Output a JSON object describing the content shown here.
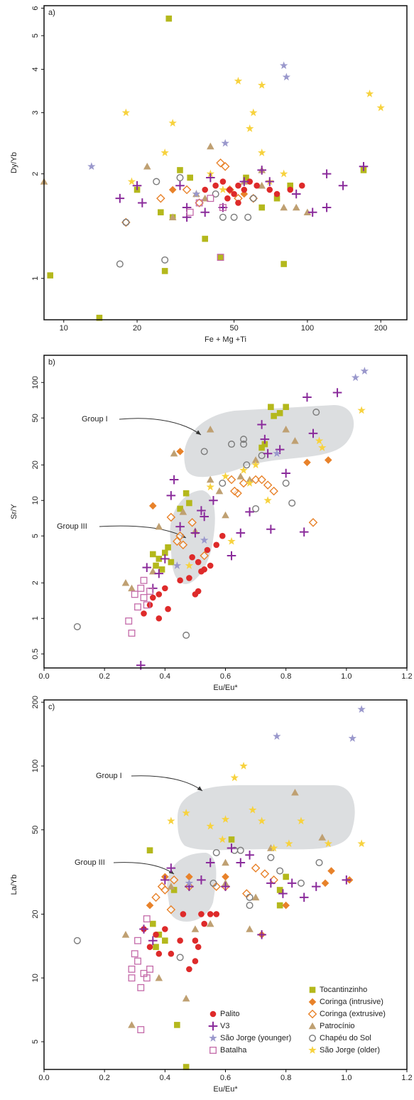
{
  "chart_data": [
    {
      "type": "scatter",
      "panel_label": "a)",
      "x_label": "Fe + Mg +Ti",
      "y_label": "Dy/Yb",
      "log_x": true,
      "log_y": true,
      "xlim": [
        8.3,
        256
      ],
      "ylim": [
        0.76,
        6.1
      ],
      "xticks": [
        10,
        20,
        50,
        100,
        200
      ],
      "yticks": [
        1,
        2,
        3,
        4,
        5,
        6
      ],
      "series": [
        {
          "color": "#b4b81c",
          "marker": "square",
          "x": [
            27,
            8.8,
            14,
            26,
            38,
            44,
            80,
            30,
            33,
            56,
            65,
            75,
            85,
            170,
            20,
            25,
            28
          ],
          "values": [
            5.6,
            1.02,
            0.77,
            1.05,
            1.3,
            1.15,
            1.1,
            2.05,
            1.95,
            1.95,
            1.6,
            1.7,
            1.85,
            2.05,
            1.8,
            1.55,
            1.5
          ]
        },
        {
          "color": "#e8822a",
          "marker": "diamond",
          "x": [
            28,
            55
          ],
          "values": [
            1.8,
            1.75
          ]
        },
        {
          "color": "#e8822a",
          "marker": "diamond-open",
          "x": [
            18,
            25,
            32,
            36,
            44,
            46,
            48,
            52,
            60
          ],
          "values": [
            1.45,
            1.7,
            1.8,
            1.65,
            2.15,
            2.1,
            1.8,
            1.7,
            1.7
          ]
        },
        {
          "color": "#bfa072",
          "marker": "triangle",
          "x": [
            8.3,
            22,
            28,
            35,
            40,
            55,
            65,
            80,
            90,
            100,
            65,
            38
          ],
          "values": [
            1.9,
            2.1,
            1.5,
            1.75,
            2.4,
            1.9,
            2.05,
            1.6,
            1.6,
            1.55,
            1.85,
            1.7
          ]
        },
        {
          "color": "#7a7a7a",
          "marker": "circle-open",
          "x": [
            17,
            18,
            26,
            24,
            30,
            45,
            50,
            57,
            60,
            42
          ],
          "values": [
            1.1,
            1.45,
            1.13,
            1.9,
            1.95,
            1.5,
            1.5,
            1.5,
            1.7,
            1.75
          ]
        },
        {
          "color": "#f7d23e",
          "marker": "star",
          "x": [
            18,
            19,
            26,
            28,
            40,
            52,
            58,
            60,
            65,
            65,
            80,
            70,
            180,
            200,
            35,
            45
          ],
          "values": [
            3.0,
            1.9,
            2.3,
            2.8,
            2.0,
            3.7,
            2.7,
            3.0,
            3.6,
            2.3,
            2.0,
            1.9,
            3.4,
            3.1,
            1.75,
            1.8
          ]
        },
        {
          "color": "#de2a2a",
          "marker": "circle",
          "x": [
            38,
            42,
            45,
            48,
            50,
            52,
            55,
            58,
            62,
            70,
            75,
            85,
            95,
            47,
            52
          ],
          "values": [
            1.8,
            1.85,
            1.9,
            1.8,
            1.75,
            1.85,
            1.8,
            1.9,
            1.85,
            1.8,
            1.75,
            1.8,
            1.85,
            1.7,
            1.65
          ]
        },
        {
          "color": "#8a2b9b",
          "marker": "plus",
          "x": [
            17,
            20,
            21,
            30,
            32,
            40,
            45,
            55,
            65,
            70,
            90,
            105,
            120,
            120,
            140,
            170,
            32,
            38
          ],
          "values": [
            1.7,
            1.85,
            1.65,
            1.85,
            1.6,
            1.95,
            1.6,
            1.9,
            2.05,
            1.9,
            1.75,
            1.55,
            2.0,
            1.6,
            1.85,
            2.1,
            1.5,
            1.55
          ]
        },
        {
          "color": "#9a98cc",
          "marker": "star",
          "x": [
            13,
            46,
            80,
            82,
            35
          ],
          "values": [
            2.1,
            2.45,
            4.1,
            3.8,
            1.75
          ]
        },
        {
          "color": "#c46aa9",
          "marker": "square-open",
          "x": [
            33,
            44,
            40,
            36,
            45
          ],
          "values": [
            1.55,
            1.15,
            1.7,
            1.65,
            1.6
          ]
        }
      ]
    },
    {
      "type": "scatter",
      "panel_label": "b)",
      "x_label": "Eu/Eu*",
      "y_label": "Sr/Y",
      "log_x": false,
      "log_y": true,
      "xlim": [
        0,
        1.2
      ],
      "ylim": [
        0.38,
        170
      ],
      "xticks": [
        {
          "value": 0,
          "label": "0.0"
        },
        0.2,
        0.4,
        0.6,
        0.8,
        {
          "value": 1,
          "label": "1.0"
        },
        1.2
      ],
      "yticks": [
        0.5,
        1,
        2,
        5,
        10,
        20,
        50,
        100
      ],
      "annotations": [
        "Group I",
        "Group III"
      ],
      "series": [
        {
          "color": "#b4b81c",
          "marker": "square",
          "x": [
            0.36,
            0.37,
            0.38,
            0.39,
            0.4,
            0.41,
            0.42,
            0.45,
            0.47,
            0.48,
            0.75,
            0.78,
            0.8,
            0.76,
            0.72,
            0.73
          ],
          "values": [
            3.5,
            2.8,
            3.2,
            2.6,
            3.6,
            4.0,
            3.0,
            8.5,
            11.5,
            9.5,
            62,
            55,
            62,
            52,
            28,
            30
          ]
        },
        {
          "color": "#e8822a",
          "marker": "diamond",
          "x": [
            0.36,
            0.45,
            0.87,
            0.94
          ],
          "values": [
            9.0,
            26,
            21,
            22
          ]
        },
        {
          "color": "#e8822a",
          "marker": "diamond-open",
          "x": [
            0.42,
            0.44,
            0.45,
            0.46,
            0.49,
            0.53,
            0.62,
            0.64,
            0.66,
            0.7,
            0.72,
            0.74,
            0.76,
            0.89,
            0.63
          ],
          "values": [
            7.2,
            4.5,
            5.0,
            4.2,
            6.5,
            3.4,
            15,
            11.5,
            14,
            15,
            15,
            13.5,
            12,
            6.5,
            12
          ]
        },
        {
          "color": "#bfa072",
          "marker": "triangle",
          "x": [
            0.27,
            0.29,
            0.36,
            0.38,
            0.43,
            0.46,
            0.5,
            0.55,
            0.58,
            0.6,
            0.65,
            0.68,
            0.7,
            0.8,
            0.83,
            0.55
          ],
          "values": [
            2.0,
            1.8,
            2.5,
            6,
            25,
            8,
            5.5,
            15,
            12,
            7.5,
            16,
            15,
            22,
            40,
            32,
            40
          ]
        },
        {
          "color": "#7a7a7a",
          "marker": "circle-open",
          "x": [
            0.11,
            0.47,
            0.53,
            0.59,
            0.62,
            0.66,
            0.67,
            0.7,
            0.72,
            0.8,
            0.82,
            0.9,
            0.66
          ],
          "values": [
            0.85,
            0.72,
            26,
            14,
            30,
            30,
            20,
            8.5,
            24,
            14,
            9.5,
            56,
            33
          ]
        },
        {
          "color": "#f7d23e",
          "marker": "star",
          "x": [
            0.48,
            0.55,
            0.6,
            0.62,
            0.66,
            0.68,
            0.7,
            0.74,
            0.91,
            0.92,
            1.05
          ],
          "values": [
            2.8,
            13,
            16,
            4.5,
            18,
            14,
            20,
            10,
            32,
            28,
            58
          ]
        },
        {
          "color": "#de2a2a",
          "marker": "circle",
          "x": [
            0.33,
            0.35,
            0.36,
            0.38,
            0.38,
            0.4,
            0.41,
            0.45,
            0.48,
            0.49,
            0.5,
            0.51,
            0.52,
            0.54,
            0.55,
            0.57,
            0.59,
            0.51,
            0.53
          ],
          "values": [
            1.1,
            1.3,
            1.5,
            1.6,
            1.0,
            1.8,
            1.2,
            2.1,
            2.2,
            3.3,
            1.6,
            1.7,
            2.5,
            3.8,
            2.8,
            4.2,
            5.0,
            3.0,
            2.6
          ]
        },
        {
          "color": "#8a2b9b",
          "marker": "plus",
          "x": [
            0.32,
            0.34,
            0.36,
            0.38,
            0.4,
            0.42,
            0.43,
            0.45,
            0.5,
            0.52,
            0.53,
            0.56,
            0.62,
            0.65,
            0.68,
            0.72,
            0.73,
            0.74,
            0.75,
            0.78,
            0.8,
            0.86,
            0.87,
            0.89,
            0.97
          ],
          "values": [
            0.4,
            2.7,
            1.8,
            2.4,
            3.2,
            11,
            15,
            6,
            5.3,
            8.2,
            7.3,
            10,
            3.4,
            5.3,
            8,
            44,
            33,
            25,
            5.7,
            27,
            17,
            5.4,
            75,
            37,
            82
          ]
        },
        {
          "color": "#9a98cc",
          "marker": "star",
          "x": [
            0.44,
            0.53,
            0.77,
            1.03,
            1.06
          ],
          "values": [
            2.8,
            4.6,
            25,
            110,
            125
          ]
        },
        {
          "color": "#c46aa9",
          "marker": "square-open",
          "x": [
            0.28,
            0.29,
            0.3,
            0.31,
            0.32,
            0.33,
            0.33,
            0.34,
            0.35
          ],
          "values": [
            0.95,
            0.75,
            1.6,
            1.25,
            1.8,
            2.1,
            1.5,
            1.3,
            1.7
          ]
        }
      ]
    },
    {
      "type": "scatter",
      "panel_label": "c)",
      "x_label": "Eu/Eu*",
      "y_label": "La/Yb",
      "log_x": false,
      "log_y": true,
      "xlim": [
        0,
        1.2
      ],
      "ylim": [
        3.7,
        205
      ],
      "xticks": [
        {
          "value": 0,
          "label": "0.0"
        },
        0.2,
        0.4,
        0.6,
        0.8,
        {
          "value": 1,
          "label": "1.0"
        },
        1.2
      ],
      "yticks": [
        5,
        10,
        20,
        50,
        100,
        200
      ],
      "annotations": [
        "Group I",
        "Group III"
      ],
      "legend": "lower right",
      "series": [
        {
          "name": "Tocantinzinho",
          "color": "#b4b81c",
          "marker": "square",
          "x": [
            0.35,
            0.36,
            0.37,
            0.38,
            0.4,
            0.43,
            0.44,
            0.47,
            0.62,
            0.78,
            0.8,
            0.78
          ],
          "values": [
            40,
            18,
            14,
            16,
            15,
            26,
            6,
            3.8,
            45,
            22,
            30,
            26
          ]
        },
        {
          "name": "Coringa (intrusive)",
          "color": "#e8822a",
          "marker": "diamond",
          "x": [
            0.35,
            0.4,
            0.48,
            0.6,
            0.72,
            0.8,
            0.95,
            1.01,
            0.93
          ],
          "values": [
            22,
            30,
            30,
            30,
            16,
            22,
            32,
            29,
            28
          ]
        },
        {
          "name": "Coringa (extrusive)",
          "color": "#e8822a",
          "marker": "diamond-open",
          "x": [
            0.37,
            0.39,
            0.4,
            0.42,
            0.43,
            0.48,
            0.57,
            0.6,
            0.67,
            0.7,
            0.73,
            0.76
          ],
          "values": [
            24,
            27,
            26,
            21,
            29,
            27,
            27,
            27,
            25,
            33,
            31,
            29
          ]
        },
        {
          "name": "Patrocínio",
          "color": "#bfa072",
          "marker": "triangle",
          "x": [
            0.27,
            0.29,
            0.38,
            0.42,
            0.47,
            0.5,
            0.55,
            0.6,
            0.68,
            0.7,
            0.75,
            0.83,
            0.92,
            0.6
          ],
          "values": [
            16,
            6,
            10,
            27,
            8,
            17,
            18,
            28,
            17,
            24,
            41,
            75,
            46,
            35
          ]
        },
        {
          "name": "Chapéu do Sol",
          "color": "#7a7a7a",
          "marker": "circle-open",
          "x": [
            0.11,
            0.45,
            0.57,
            0.63,
            0.65,
            0.68,
            0.68,
            0.75,
            0.78,
            0.85,
            0.91,
            0.56
          ],
          "values": [
            15,
            12.5,
            39,
            40,
            40,
            22,
            24,
            37,
            32,
            28,
            35,
            28
          ]
        },
        {
          "name": "São Jorge (older)",
          "color": "#f7d23e",
          "marker": "star",
          "x": [
            0.42,
            0.47,
            0.55,
            0.59,
            0.63,
            0.66,
            0.69,
            0.72,
            0.76,
            0.81,
            0.85,
            0.94,
            1.05,
            0.6
          ],
          "values": [
            55,
            60,
            52,
            45,
            88,
            100,
            62,
            55,
            41,
            43,
            55,
            43,
            43,
            56
          ]
        },
        {
          "name": "Palito",
          "color": "#de2a2a",
          "marker": "circle",
          "x": [
            0.33,
            0.35,
            0.37,
            0.38,
            0.4,
            0.42,
            0.45,
            0.46,
            0.48,
            0.5,
            0.51,
            0.52,
            0.53,
            0.55,
            0.57,
            0.5
          ],
          "values": [
            17,
            14,
            16,
            13,
            17,
            13,
            15,
            20,
            11,
            12,
            14,
            20,
            18,
            20,
            20,
            15
          ]
        },
        {
          "name": "V3",
          "color": "#8a2b9b",
          "marker": "plus",
          "x": [
            0.33,
            0.36,
            0.4,
            0.42,
            0.48,
            0.52,
            0.55,
            0.6,
            0.62,
            0.65,
            0.68,
            0.72,
            0.75,
            0.79,
            0.82,
            0.86,
            0.9,
            1.0
          ],
          "values": [
            17,
            15,
            29,
            33,
            27,
            29,
            35,
            27,
            41,
            35,
            38,
            16,
            28,
            25,
            28,
            24,
            27,
            29
          ]
        },
        {
          "name": "São Jorge (younger)",
          "color": "#9a98cc",
          "marker": "star",
          "x": [
            0.48,
            0.77,
            1.02,
            1.05
          ],
          "values": [
            28,
            138,
            135,
            185
          ]
        },
        {
          "name": "Batalha",
          "color": "#c46aa9",
          "marker": "square-open",
          "x": [
            0.29,
            0.29,
            0.3,
            0.31,
            0.32,
            0.32,
            0.33,
            0.34,
            0.35,
            0.31,
            0.34
          ],
          "values": [
            11,
            10,
            13,
            12,
            9,
            5.7,
            10.5,
            10,
            11,
            15,
            19
          ]
        }
      ]
    }
  ]
}
